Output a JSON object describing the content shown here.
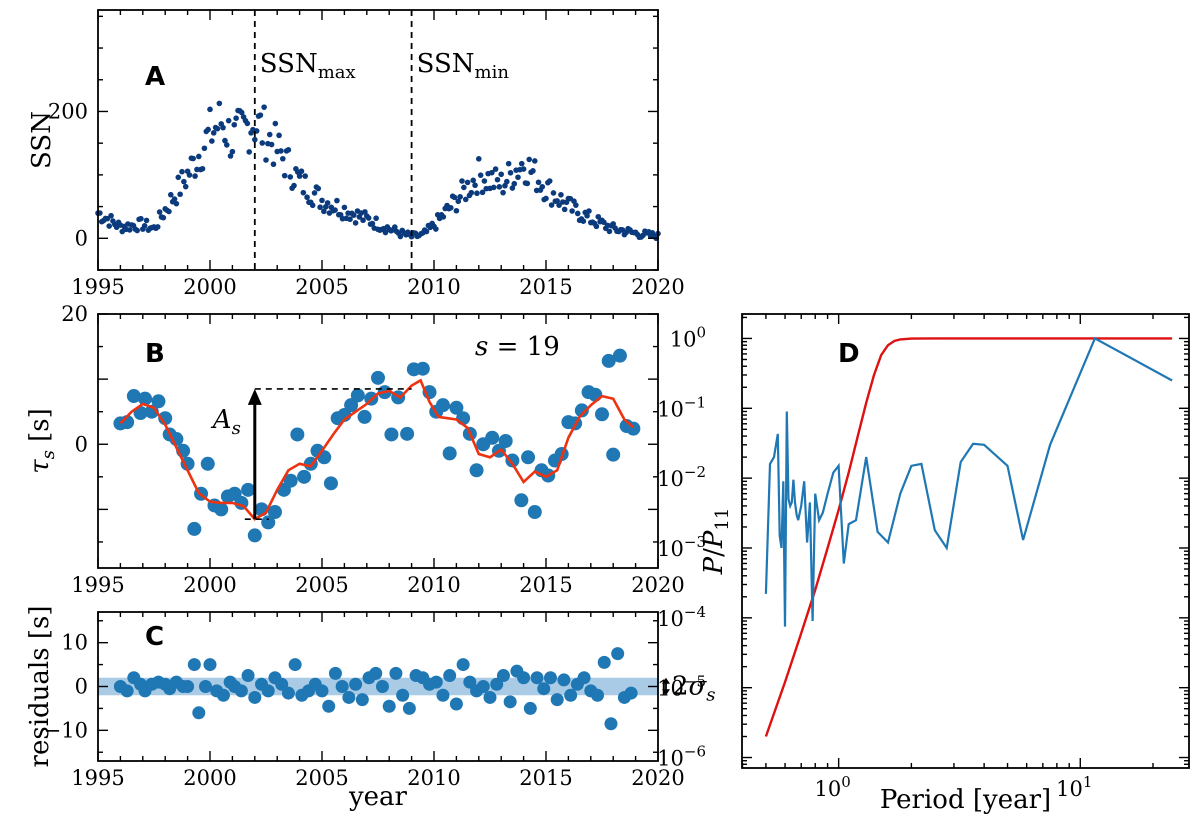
{
  "chart_data": [
    {
      "id": "A",
      "type": "scatter",
      "panel_label": "A",
      "xlabel": "",
      "ylabel": "SSN",
      "xlim": [
        1995,
        2020
      ],
      "ylim": [
        -50,
        360
      ],
      "xticks": [
        1995,
        2000,
        2005,
        2010,
        2015,
        2020
      ],
      "yticks": [
        0,
        200
      ],
      "color": "#0b3a7d",
      "annotations": [
        {
          "name": "ssn-max-line",
          "x": 2002.0,
          "base": "SSN",
          "sub": "max"
        },
        {
          "name": "ssn-min-line",
          "x": 2009.0,
          "base": "SSN",
          "sub": "min"
        }
      ],
      "series": [
        {
          "name": "SSN monthly",
          "generator": "ssn_cycles"
        }
      ],
      "anchor_values": {
        "x": [
          1995.0,
          1996.0,
          1997.0,
          1997.5,
          1998.0,
          1999.0,
          2000.0,
          2000.5,
          2001.0,
          2001.5,
          2001.9,
          2002.5,
          2003.0,
          2004.0,
          2005.0,
          2006.0,
          2007.0,
          2008.0,
          2008.5,
          2009.0,
          2009.5,
          2010.0,
          2011.0,
          2012.0,
          2013.0,
          2014.0,
          2015.0,
          2016.0,
          2017.0,
          2018.0,
          2019.0,
          2020.0
        ],
        "y": [
          40,
          18,
          22,
          15,
          45,
          100,
          165,
          185,
          155,
          170,
          185,
          165,
          140,
          90,
          60,
          45,
          30,
          15,
          8,
          3,
          5,
          20,
          60,
          100,
          85,
          120,
          80,
          50,
          30,
          15,
          8,
          3
        ]
      }
    },
    {
      "id": "B",
      "type": "scatter",
      "panel_label": "B",
      "xlabel": "",
      "ylabel": "τs [s]",
      "ylabel_base": "τ",
      "ylabel_sub": "s",
      "ylabel_unit": " [s]",
      "xlim": [
        1995,
        2020
      ],
      "ylim": [
        -19,
        20
      ],
      "xticks": [
        1995,
        2000,
        2005,
        2010,
        2015,
        2020
      ],
      "yticks": [
        0,
        20
      ],
      "annotation_s": {
        "lhs": "s",
        "eq": " = ",
        "value": "19"
      },
      "amplitude_label": {
        "base": "A",
        "sub": "s"
      },
      "amplitude_arrow": {
        "x": 2002.0,
        "y_low": -11.5,
        "y_high": 8.5,
        "dash_x_end": 2009.0
      },
      "point_color": "#1f77b4",
      "line_color": "#ee3311",
      "points": [
        [
          1996.0,
          3.2
        ],
        [
          1996.3,
          3.4
        ],
        [
          1996.6,
          7.4
        ],
        [
          1996.9,
          4.8
        ],
        [
          1997.1,
          7.0
        ],
        [
          1997.4,
          5.0
        ],
        [
          1997.7,
          6.6
        ],
        [
          1998.0,
          4.0
        ],
        [
          1998.2,
          1.5
        ],
        [
          1998.5,
          0.8
        ],
        [
          1998.8,
          -1.0
        ],
        [
          1999.0,
          -3.0
        ],
        [
          1999.3,
          -13.0
        ],
        [
          1999.6,
          -7.6
        ],
        [
          1999.9,
          -3.0
        ],
        [
          2000.2,
          -9.4
        ],
        [
          2000.5,
          -10.0
        ],
        [
          2000.8,
          -8.0
        ],
        [
          2001.1,
          -7.6
        ],
        [
          2001.4,
          -9.0
        ],
        [
          2001.7,
          -7.0
        ],
        [
          2002.0,
          -14.0
        ],
        [
          2002.3,
          -10.0
        ],
        [
          2002.6,
          -12.0
        ],
        [
          2002.9,
          -10.4
        ],
        [
          2003.3,
          -7.0
        ],
        [
          2003.6,
          -5.6
        ],
        [
          2003.9,
          1.5
        ],
        [
          2004.2,
          -5.0
        ],
        [
          2004.5,
          -3.0
        ],
        [
          2004.8,
          -1.0
        ],
        [
          2005.1,
          -2.0
        ],
        [
          2005.4,
          -6.0
        ],
        [
          2005.7,
          4.0
        ],
        [
          2006.0,
          4.5
        ],
        [
          2006.3,
          6.0
        ],
        [
          2006.6,
          7.5
        ],
        [
          2006.9,
          4.2
        ],
        [
          2007.2,
          7.0
        ],
        [
          2007.5,
          10.2
        ],
        [
          2007.8,
          8.0
        ],
        [
          2008.1,
          1.5
        ],
        [
          2008.4,
          7.2
        ],
        [
          2008.8,
          1.6
        ],
        [
          2009.1,
          11.5
        ],
        [
          2009.5,
          11.6
        ],
        [
          2009.8,
          8.0
        ],
        [
          2010.1,
          5.0
        ],
        [
          2010.4,
          6.0
        ],
        [
          2010.7,
          -1.4
        ],
        [
          2011.0,
          5.6
        ],
        [
          2011.3,
          4.0
        ],
        [
          2011.6,
          1.6
        ],
        [
          2011.9,
          -4.0
        ],
        [
          2012.2,
          0.0
        ],
        [
          2012.6,
          1.0
        ],
        [
          2012.9,
          -1.0
        ],
        [
          2013.2,
          0.5
        ],
        [
          2013.5,
          -2.5
        ],
        [
          2013.9,
          -8.6
        ],
        [
          2014.2,
          -2.0
        ],
        [
          2014.5,
          -10.4
        ],
        [
          2014.8,
          -4.0
        ],
        [
          2015.1,
          -4.8
        ],
        [
          2015.4,
          -2.5
        ],
        [
          2015.7,
          -1.5
        ],
        [
          2016.0,
          3.4
        ],
        [
          2016.3,
          3.2
        ],
        [
          2016.6,
          5.2
        ],
        [
          2016.9,
          8.0
        ],
        [
          2017.2,
          7.6
        ],
        [
          2017.5,
          4.6
        ],
        [
          2017.8,
          12.8
        ],
        [
          2018.0,
          -1.6
        ],
        [
          2018.3,
          13.6
        ],
        [
          2018.6,
          2.8
        ],
        [
          2018.9,
          2.4
        ]
      ],
      "fit_line": [
        [
          1996.0,
          3.2
        ],
        [
          1996.5,
          5.0
        ],
        [
          1997.0,
          6.2
        ],
        [
          1997.5,
          5.6
        ],
        [
          1998.0,
          3.0
        ],
        [
          1998.5,
          -0.5
        ],
        [
          1999.0,
          -4.0
        ],
        [
          1999.5,
          -7.5
        ],
        [
          2000.0,
          -8.8
        ],
        [
          2000.5,
          -9.0
        ],
        [
          2001.0,
          -9.0
        ],
        [
          2001.5,
          -9.5
        ],
        [
          2002.0,
          -11.5
        ],
        [
          2002.5,
          -10.5
        ],
        [
          2003.0,
          -7.0
        ],
        [
          2003.5,
          -4.0
        ],
        [
          2004.0,
          -3.0
        ],
        [
          2004.5,
          -3.4
        ],
        [
          2005.0,
          -1.0
        ],
        [
          2005.5,
          1.5
        ],
        [
          2006.0,
          3.8
        ],
        [
          2006.5,
          5.0
        ],
        [
          2007.0,
          6.2
        ],
        [
          2007.5,
          7.8
        ],
        [
          2008.0,
          8.2
        ],
        [
          2008.5,
          7.2
        ],
        [
          2009.0,
          9.0
        ],
        [
          2009.4,
          9.8
        ],
        [
          2009.8,
          6.5
        ],
        [
          2010.2,
          4.2
        ],
        [
          2010.6,
          4.0
        ],
        [
          2011.0,
          3.8
        ],
        [
          2011.5,
          2.5
        ],
        [
          2012.0,
          -1.5
        ],
        [
          2012.5,
          -2.0
        ],
        [
          2013.0,
          -0.8
        ],
        [
          2013.5,
          -3.0
        ],
        [
          2014.0,
          -5.8
        ],
        [
          2014.5,
          -4.2
        ],
        [
          2015.0,
          -5.0
        ],
        [
          2015.5,
          -4.0
        ],
        [
          2016.0,
          1.0
        ],
        [
          2016.5,
          4.2
        ],
        [
          2017.0,
          6.0
        ],
        [
          2017.5,
          7.4
        ],
        [
          2018.0,
          7.0
        ],
        [
          2018.5,
          3.8
        ],
        [
          2018.9,
          2.6
        ]
      ]
    },
    {
      "id": "C",
      "type": "scatter",
      "panel_label": "C",
      "xlabel": "year",
      "ylabel": "residuals [s]",
      "xlim": [
        1995,
        2020
      ],
      "ylim": [
        -17,
        17
      ],
      "xticks": [
        1995,
        2000,
        2005,
        2010,
        2015,
        2020
      ],
      "yticks": [
        -10,
        0,
        10
      ],
      "band": {
        "low": -2.0,
        "high": 2.0,
        "color": "#a9cbe6"
      },
      "sigma_label": {
        "prefix": "2",
        "base": "σ",
        "sub": "s"
      },
      "point_color": "#1f77b4",
      "points": [
        [
          1996.0,
          0.0
        ],
        [
          1996.3,
          -1.0
        ],
        [
          1996.6,
          2.0
        ],
        [
          1996.9,
          0.5
        ],
        [
          1997.1,
          -1.0
        ],
        [
          1997.4,
          0.5
        ],
        [
          1997.7,
          1.0
        ],
        [
          1998.0,
          0.5
        ],
        [
          1998.2,
          -0.5
        ],
        [
          1998.5,
          1.0
        ],
        [
          1998.8,
          0.0
        ],
        [
          1999.0,
          0.0
        ],
        [
          1999.3,
          5.0
        ],
        [
          1999.5,
          -6.0
        ],
        [
          1999.8,
          0.0
        ],
        [
          2000.0,
          5.0
        ],
        [
          2000.3,
          -1.0
        ],
        [
          2000.6,
          -2.0
        ],
        [
          2000.9,
          1.0
        ],
        [
          2001.1,
          0.0
        ],
        [
          2001.4,
          -1.0
        ],
        [
          2001.7,
          2.5
        ],
        [
          2002.0,
          -2.5
        ],
        [
          2002.3,
          0.5
        ],
        [
          2002.6,
          -1.0
        ],
        [
          2002.9,
          2.0
        ],
        [
          2003.2,
          0.5
        ],
        [
          2003.5,
          -1.5
        ],
        [
          2003.8,
          5.0
        ],
        [
          2004.1,
          -2.0
        ],
        [
          2004.4,
          -1.0
        ],
        [
          2004.7,
          0.5
        ],
        [
          2005.0,
          -1.0
        ],
        [
          2005.3,
          -4.5
        ],
        [
          2005.6,
          3.0
        ],
        [
          2005.9,
          0.0
        ],
        [
          2006.2,
          -2.5
        ],
        [
          2006.5,
          0.5
        ],
        [
          2006.8,
          -3.0
        ],
        [
          2007.1,
          2.0
        ],
        [
          2007.4,
          3.0
        ],
        [
          2007.7,
          0.0
        ],
        [
          2008.0,
          -4.5
        ],
        [
          2008.3,
          3.0
        ],
        [
          2008.6,
          -2.0
        ],
        [
          2008.9,
          -5.0
        ],
        [
          2009.2,
          2.5
        ],
        [
          2009.5,
          2.0
        ],
        [
          2009.8,
          0.5
        ],
        [
          2010.1,
          1.0
        ],
        [
          2010.4,
          -2.0
        ],
        [
          2010.7,
          2.5
        ],
        [
          2011.0,
          -4.0
        ],
        [
          2011.3,
          5.0
        ],
        [
          2011.6,
          1.0
        ],
        [
          2011.9,
          -1.0
        ],
        [
          2012.2,
          0.0
        ],
        [
          2012.5,
          -2.5
        ],
        [
          2012.8,
          0.5
        ],
        [
          2013.1,
          2.5
        ],
        [
          2013.4,
          -3.5
        ],
        [
          2013.7,
          3.5
        ],
        [
          2014.0,
          2.0
        ],
        [
          2014.3,
          -5.0
        ],
        [
          2014.6,
          2.0
        ],
        [
          2014.9,
          -0.5
        ],
        [
          2015.2,
          2.0
        ],
        [
          2015.5,
          -3.0
        ],
        [
          2015.8,
          1.5
        ],
        [
          2016.1,
          -2.0
        ],
        [
          2016.4,
          0.5
        ],
        [
          2016.7,
          2.0
        ],
        [
          2017.0,
          -1.0
        ],
        [
          2017.3,
          -2.0
        ],
        [
          2017.6,
          5.5
        ],
        [
          2017.9,
          -8.5
        ],
        [
          2018.2,
          7.5
        ],
        [
          2018.5,
          -2.5
        ],
        [
          2018.8,
          -1.5
        ]
      ]
    },
    {
      "id": "D",
      "type": "line",
      "panel_label": "D",
      "xlabel": "Period [year]",
      "ylabel": "P/P11",
      "ylabel_parts": {
        "p": "P",
        "slash": "/",
        "p2": "P",
        "sub": "11"
      },
      "xscale": "log",
      "yscale": "log",
      "xlim_log10": [
        -0.4,
        1.45
      ],
      "ylim_log10": [
        -6.15,
        0.35
      ],
      "xtick_labels": [
        {
          "base": "10",
          "exp": "0",
          "log10": 0
        },
        {
          "base": "10",
          "exp": "1",
          "log10": 1
        }
      ],
      "ytick_labels": [
        {
          "base": "10",
          "exp": "0",
          "log10": 0
        },
        {
          "base": "10",
          "exp": "−1",
          "log10": -1
        },
        {
          "base": "10",
          "exp": "−2",
          "log10": -2
        },
        {
          "base": "10",
          "exp": "−3",
          "log10": -3
        },
        {
          "base": "10",
          "exp": "−4",
          "log10": -4
        },
        {
          "base": "10",
          "exp": "−5",
          "log10": -5
        },
        {
          "base": "10",
          "exp": "−6",
          "log10": -6
        }
      ],
      "series": [
        {
          "name": "periodogram",
          "color": "#1f77b4",
          "x": [
            0.5,
            0.52,
            0.54,
            0.56,
            0.57,
            0.58,
            0.59,
            0.6,
            0.61,
            0.62,
            0.63,
            0.64,
            0.65,
            0.66,
            0.67,
            0.68,
            0.7,
            0.72,
            0.74,
            0.76,
            0.78,
            0.8,
            0.83,
            0.86,
            0.9,
            0.95,
            1.0,
            1.05,
            1.1,
            1.18,
            1.3,
            1.45,
            1.6,
            1.8,
            2.0,
            2.2,
            2.5,
            2.8,
            3.2,
            3.6,
            4.0,
            5.0,
            5.8,
            7.5,
            11.5,
            24.0
          ],
          "y": [
            0.00022,
            0.016,
            0.02,
            0.043,
            0.0015,
            0.001,
            0.009,
            7.5e-05,
            0.09,
            0.005,
            0.004,
            0.0045,
            0.0095,
            0.0045,
            0.003,
            0.0025,
            0.004,
            0.009,
            0.0012,
            0.0045,
            9e-05,
            0.006,
            0.0025,
            0.0032,
            0.006,
            0.012,
            0.015,
            0.0006,
            0.0022,
            0.0025,
            0.02,
            0.0017,
            0.0012,
            0.006,
            0.015,
            0.016,
            0.0018,
            0.001,
            0.017,
            0.031,
            0.03,
            0.015,
            0.0013,
            0.03,
            1.0,
            0.25
          ]
        },
        {
          "name": "filter",
          "color": "#dd1111",
          "x": [
            0.5,
            0.6,
            0.7,
            0.8,
            0.9,
            1.0,
            1.1,
            1.2,
            1.3,
            1.4,
            1.5,
            1.6,
            1.7,
            1.8,
            2.0,
            2.5,
            3.0,
            5.0,
            10.0,
            24.0
          ],
          "y": [
            2e-06,
            1.2e-05,
            6e-05,
            0.00025,
            0.001,
            0.0035,
            0.012,
            0.04,
            0.12,
            0.3,
            0.58,
            0.8,
            0.92,
            0.97,
            0.995,
            1.0,
            1.0,
            1.0,
            1.0,
            1.0
          ]
        }
      ]
    }
  ]
}
